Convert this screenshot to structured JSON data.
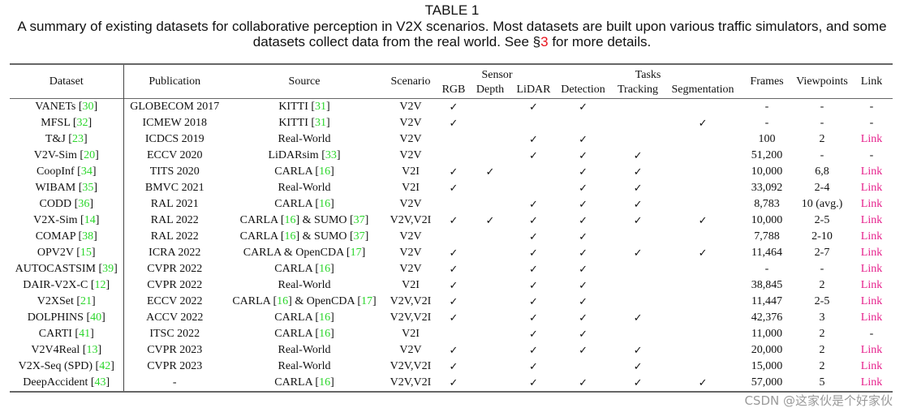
{
  "caption": {
    "label": "TABLE 1",
    "line1": "A summary of existing datasets for collaborative perception in V2X scenarios. Most datasets are built upon various traffic simulators, and some",
    "line2_pre": "datasets collect data from the real world. See §",
    "line2_ref": "3",
    "line2_post": " for more details."
  },
  "headers": {
    "dataset": "Dataset",
    "publication": "Publication",
    "source": "Source",
    "scenario": "Scenario",
    "sensor": "Sensor",
    "tasks": "Tasks",
    "rgb": "RGB",
    "depth": "Depth",
    "lidar": "LiDAR",
    "detection": "Detection",
    "tracking": "Tracking",
    "segmentation": "Segmentation",
    "frames": "Frames",
    "viewpoints": "Viewpoints",
    "link": "Link"
  },
  "check_glyph": "✓",
  "colors": {
    "citation": "#2bd62b",
    "link": "#e6208c",
    "section_ref": "#e8141e"
  },
  "rows": [
    {
      "dataset": [
        [
          "VANETs ",
          ""
        ],
        [
          "30",
          "r"
        ]
      ],
      "publication": "GLOBECOM 2017",
      "source": [
        [
          "KITTI [",
          ""
        ],
        [
          "31",
          "r"
        ],
        [
          "]",
          ""
        ]
      ],
      "scenario": "V2V",
      "flags": [
        1,
        0,
        1,
        1,
        0,
        0
      ],
      "frames": "-",
      "viewpoints": "-",
      "link": "-"
    },
    {
      "dataset": [
        [
          "MFSL ",
          ""
        ],
        [
          "32",
          "r"
        ]
      ],
      "publication": "ICMEW 2018",
      "source": [
        [
          "KITTI [",
          ""
        ],
        [
          "31",
          "r"
        ],
        [
          "]",
          ""
        ]
      ],
      "scenario": "V2V",
      "flags": [
        1,
        0,
        0,
        0,
        0,
        1
      ],
      "frames": "-",
      "viewpoints": "-",
      "link": "-"
    },
    {
      "dataset": [
        [
          "T&J ",
          ""
        ],
        [
          "23",
          "r"
        ]
      ],
      "publication": "ICDCS 2019",
      "source": [
        [
          "Real-World",
          ""
        ]
      ],
      "scenario": "V2V",
      "flags": [
        0,
        0,
        1,
        1,
        0,
        0
      ],
      "frames": "100",
      "viewpoints": "2",
      "link": "Link"
    },
    {
      "dataset": [
        [
          "V2V-Sim ",
          ""
        ],
        [
          "20",
          "r"
        ]
      ],
      "publication": "ECCV 2020",
      "source": [
        [
          "LiDARsim [",
          ""
        ],
        [
          "33",
          "r"
        ],
        [
          "]",
          ""
        ]
      ],
      "scenario": "V2V",
      "flags": [
        0,
        0,
        1,
        1,
        1,
        0
      ],
      "frames": "51,200",
      "viewpoints": "-",
      "link": "-"
    },
    {
      "dataset": [
        [
          "CoopInf ",
          ""
        ],
        [
          "34",
          "r"
        ]
      ],
      "publication": "TITS 2020",
      "source": [
        [
          "CARLA [",
          ""
        ],
        [
          "16",
          "r"
        ],
        [
          "]",
          ""
        ]
      ],
      "scenario": "V2I",
      "flags": [
        1,
        1,
        0,
        1,
        1,
        0
      ],
      "frames": "10,000",
      "viewpoints": "6,8",
      "link": "Link"
    },
    {
      "dataset": [
        [
          "WIBAM ",
          ""
        ],
        [
          "35",
          "r"
        ]
      ],
      "publication": "BMVC 2021",
      "source": [
        [
          "Real-World",
          ""
        ]
      ],
      "scenario": "V2I",
      "flags": [
        1,
        0,
        0,
        1,
        1,
        0
      ],
      "frames": "33,092",
      "viewpoints": "2-4",
      "link": "Link"
    },
    {
      "dataset": [
        [
          "CODD ",
          ""
        ],
        [
          "36",
          "r"
        ]
      ],
      "publication": "RAL 2021",
      "source": [
        [
          "CARLA [",
          ""
        ],
        [
          "16",
          "r"
        ],
        [
          "]",
          ""
        ]
      ],
      "scenario": "V2V",
      "flags": [
        0,
        0,
        1,
        1,
        1,
        0
      ],
      "frames": "8,783",
      "viewpoints": "10 (avg.)",
      "link": "Link"
    },
    {
      "dataset": [
        [
          "V2X-Sim ",
          ""
        ],
        [
          "14",
          "r"
        ]
      ],
      "publication": "RAL 2022",
      "source": [
        [
          "CARLA [",
          ""
        ],
        [
          "16",
          "r"
        ],
        [
          "] & SUMO [",
          ""
        ],
        [
          "37",
          "r"
        ],
        [
          "]",
          ""
        ]
      ],
      "scenario": "V2V,V2I",
      "flags": [
        1,
        1,
        1,
        1,
        1,
        1
      ],
      "frames": "10,000",
      "viewpoints": "2-5",
      "link": "Link"
    },
    {
      "dataset": [
        [
          "COMAP ",
          ""
        ],
        [
          "38",
          "r"
        ]
      ],
      "publication": "RAL 2022",
      "source": [
        [
          "CARLA [",
          ""
        ],
        [
          "16",
          "r"
        ],
        [
          "] & SUMO [",
          ""
        ],
        [
          "37",
          "r"
        ],
        [
          "]",
          ""
        ]
      ],
      "scenario": "V2V",
      "flags": [
        0,
        0,
        1,
        1,
        0,
        0
      ],
      "frames": "7,788",
      "viewpoints": "2-10",
      "link": "Link"
    },
    {
      "dataset": [
        [
          "OPV2V ",
          ""
        ],
        [
          "15",
          "r"
        ]
      ],
      "publication": "ICRA 2022",
      "source": [
        [
          "CARLA & OpenCDA [",
          ""
        ],
        [
          "17",
          "r"
        ],
        [
          "]",
          ""
        ]
      ],
      "scenario": "V2V",
      "flags": [
        1,
        0,
        1,
        1,
        1,
        1
      ],
      "frames": "11,464",
      "viewpoints": "2-7",
      "link": "Link"
    },
    {
      "dataset": [
        [
          "AUTOCASTSIM ",
          ""
        ],
        [
          "39",
          "r"
        ]
      ],
      "publication": "CVPR 2022",
      "source": [
        [
          "CARLA [",
          ""
        ],
        [
          "16",
          "r"
        ],
        [
          "]",
          ""
        ]
      ],
      "scenario": "V2V",
      "flags": [
        1,
        0,
        1,
        1,
        0,
        0
      ],
      "frames": "-",
      "viewpoints": "-",
      "link": "Link"
    },
    {
      "dataset": [
        [
          "DAIR-V2X-C ",
          ""
        ],
        [
          "12",
          "r"
        ]
      ],
      "publication": "CVPR 2022",
      "source": [
        [
          "Real-World",
          ""
        ]
      ],
      "scenario": "V2I",
      "flags": [
        1,
        0,
        1,
        1,
        0,
        0
      ],
      "frames": "38,845",
      "viewpoints": "2",
      "link": "Link"
    },
    {
      "dataset": [
        [
          "V2XSet ",
          ""
        ],
        [
          "21",
          "r"
        ]
      ],
      "publication": "ECCV 2022",
      "source": [
        [
          "CARLA [",
          ""
        ],
        [
          "16",
          "r"
        ],
        [
          "] & OpenCDA [",
          ""
        ],
        [
          "17",
          "r"
        ],
        [
          "]",
          ""
        ]
      ],
      "scenario": "V2V,V2I",
      "flags": [
        1,
        0,
        1,
        1,
        0,
        0
      ],
      "frames": "11,447",
      "viewpoints": "2-5",
      "link": "Link"
    },
    {
      "dataset": [
        [
          "DOLPHINS ",
          ""
        ],
        [
          "40",
          "r"
        ]
      ],
      "publication": "ACCV 2022",
      "source": [
        [
          "CARLA [",
          ""
        ],
        [
          "16",
          "r"
        ],
        [
          "]",
          ""
        ]
      ],
      "scenario": "V2V,V2I",
      "flags": [
        1,
        0,
        1,
        1,
        1,
        0
      ],
      "frames": "42,376",
      "viewpoints": "3",
      "link": "Link"
    },
    {
      "dataset": [
        [
          "CARTI ",
          ""
        ],
        [
          "41",
          "r"
        ]
      ],
      "publication": "ITSC 2022",
      "source": [
        [
          "CARLA [",
          ""
        ],
        [
          "16",
          "r"
        ],
        [
          "]",
          ""
        ]
      ],
      "scenario": "V2I",
      "flags": [
        0,
        0,
        1,
        1,
        0,
        0
      ],
      "frames": "11,000",
      "viewpoints": "2",
      "link": "-"
    },
    {
      "dataset": [
        [
          "V2V4Real ",
          ""
        ],
        [
          "13",
          "r"
        ]
      ],
      "publication": "CVPR 2023",
      "source": [
        [
          "Real-World",
          ""
        ]
      ],
      "scenario": "V2V",
      "flags": [
        1,
        0,
        1,
        1,
        1,
        0
      ],
      "frames": "20,000",
      "viewpoints": "2",
      "link": "Link"
    },
    {
      "dataset": [
        [
          "V2X-Seq (SPD) ",
          ""
        ],
        [
          "42",
          "r"
        ]
      ],
      "publication": "CVPR 2023",
      "source": [
        [
          "Real-World",
          ""
        ]
      ],
      "scenario": "V2V,V2I",
      "flags": [
        1,
        0,
        1,
        0,
        1,
        0
      ],
      "frames": "15,000",
      "viewpoints": "2",
      "link": "Link"
    },
    {
      "dataset": [
        [
          "DeepAccident ",
          ""
        ],
        [
          "43",
          "r"
        ]
      ],
      "publication": "-",
      "source": [
        [
          "CARLA [",
          ""
        ],
        [
          "16",
          "r"
        ],
        [
          "]",
          ""
        ]
      ],
      "scenario": "V2V,V2I",
      "flags": [
        1,
        0,
        1,
        1,
        1,
        1
      ],
      "frames": "57,000",
      "viewpoints": "5",
      "link": "Link"
    }
  ],
  "watermark": "CSDN @这家伙是个好家伙"
}
